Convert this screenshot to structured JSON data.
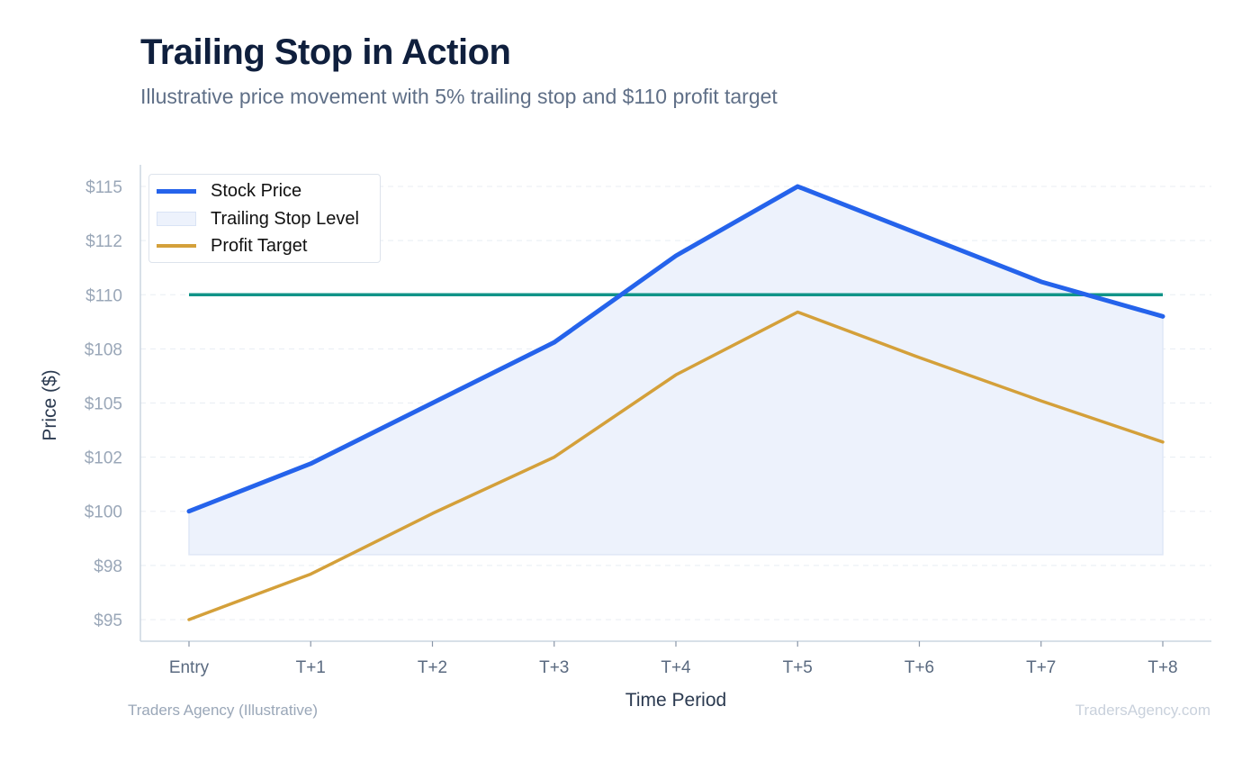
{
  "header": {
    "title": "Trailing Stop in Action",
    "subtitle": "Illustrative price movement with 5% trailing stop and $110 profit target"
  },
  "footer": {
    "source": "Traders Agency (Illustrative)",
    "watermark": "TradersAgency.com"
  },
  "colors": {
    "stock_price": "#2563eb",
    "trailing_stop_fill": "#edf2fc",
    "profit_target": "#d4a03a",
    "target_line": "#119488",
    "grid": "#e8edf3",
    "axis": "#ccd5e0"
  },
  "chart_data": {
    "type": "line",
    "title": "Trailing Stop in Action",
    "subtitle": "Illustrative price movement with 5% trailing stop and $110 profit target",
    "xlabel": "Time Period",
    "ylabel": "Price ($)",
    "categories": [
      "Entry",
      "T+1",
      "T+2",
      "T+3",
      "T+4",
      "T+5",
      "T+6",
      "T+7",
      "T+8"
    ],
    "ylim": [
      94,
      116
    ],
    "y_ticks": [
      95,
      97.5,
      100,
      102.5,
      105,
      107.5,
      110,
      112.5,
      115
    ],
    "y_tick_labels": [
      "$95",
      "$98",
      "$100",
      "$102",
      "$105",
      "$108",
      "$110",
      "$112",
      "$115"
    ],
    "grid": true,
    "legend_position": "top-left",
    "series": [
      {
        "name": "Stock Price",
        "kind": "line",
        "values": [
          100,
          102.2,
          105,
          107.8,
          111.8,
          115,
          112.8,
          110.6,
          109
        ]
      },
      {
        "name": "Trailing Stop Level",
        "kind": "area",
        "values": [
          98,
          98,
          98,
          98,
          98,
          98,
          98,
          98,
          98
        ]
      },
      {
        "name": "Profit Target",
        "kind": "line",
        "values": [
          95,
          97.1,
          99.9,
          102.5,
          106.3,
          109.2,
          107.1,
          105.1,
          103.2
        ]
      }
    ],
    "horizontal_line": {
      "value": 110
    }
  }
}
